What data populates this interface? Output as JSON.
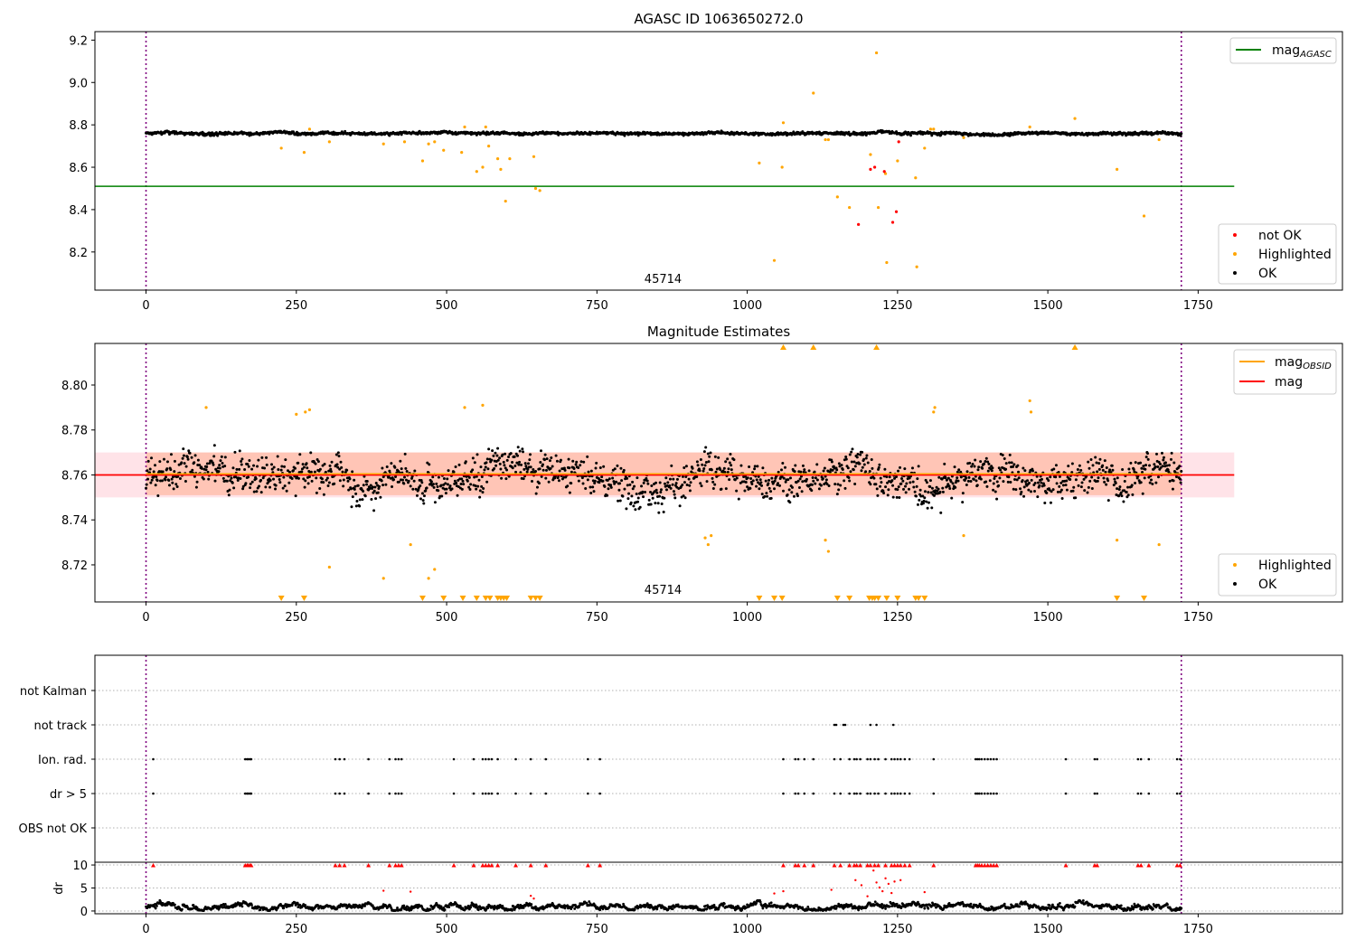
{
  "chart_data": [
    {
      "type": "scatter",
      "title": "AGASC ID 1063650272.0",
      "xlabel": "",
      "ylabel": "",
      "xlim": [
        -85,
        1990
      ],
      "ylim": [
        8.02,
        9.24
      ],
      "xticks": [
        0,
        250,
        500,
        750,
        1000,
        1250,
        1500,
        1750
      ],
      "yticks": [
        8.2,
        8.4,
        8.6,
        8.8,
        9.0,
        9.2
      ],
      "ytick_labels": [
        "8.2",
        "8.4",
        "8.6",
        "8.8",
        "9.0",
        "9.2"
      ],
      "obsid_label": "45714",
      "obsid_label_x": 860,
      "vlines": [
        0,
        1722
      ],
      "hlines": [
        {
          "name": "mag_AGASC",
          "y": 8.51,
          "x0": -85,
          "x1": 1810,
          "color": "#008000"
        }
      ],
      "legend_lines": [
        {
          "label_main": "mag",
          "label_sub": "AGASC",
          "color": "#008000"
        }
      ],
      "legend_points": [
        {
          "label": "not OK",
          "color": "#ff0000"
        },
        {
          "label": "Highlighted",
          "color": "#ffa500"
        },
        {
          "label": "OK",
          "color": "#000000"
        }
      ],
      "ok_band": {
        "x0": 0,
        "x1": 1722,
        "center": 8.76,
        "noise": 0.008
      },
      "highlighted": [
        [
          225,
          8.69
        ],
        [
          263,
          8.67
        ],
        [
          272,
          8.78
        ],
        [
          305,
          8.72
        ],
        [
          395,
          8.71
        ],
        [
          430,
          8.72
        ],
        [
          460,
          8.63
        ],
        [
          470,
          8.71
        ],
        [
          480,
          8.72
        ],
        [
          495,
          8.68
        ],
        [
          525,
          8.67
        ],
        [
          530,
          8.79
        ],
        [
          550,
          8.58
        ],
        [
          560,
          8.6
        ],
        [
          565,
          8.79
        ],
        [
          570,
          8.7
        ],
        [
          585,
          8.64
        ],
        [
          590,
          8.59
        ],
        [
          598,
          8.44
        ],
        [
          605,
          8.64
        ],
        [
          645,
          8.65
        ],
        [
          648,
          8.5
        ],
        [
          655,
          8.49
        ],
        [
          1020,
          8.62
        ],
        [
          1045,
          8.16
        ],
        [
          1058,
          8.6
        ],
        [
          1060,
          8.81
        ],
        [
          1110,
          8.95
        ],
        [
          1130,
          8.73
        ],
        [
          1135,
          8.73
        ],
        [
          1150,
          8.46
        ],
        [
          1170,
          8.41
        ],
        [
          1205,
          8.66
        ],
        [
          1215,
          9.14
        ],
        [
          1218,
          8.41
        ],
        [
          1230,
          8.57
        ],
        [
          1232,
          8.15
        ],
        [
          1250,
          8.63
        ],
        [
          1280,
          8.55
        ],
        [
          1282,
          8.13
        ],
        [
          1295,
          8.69
        ],
        [
          1305,
          8.78
        ],
        [
          1310,
          8.78
        ],
        [
          1360,
          8.74
        ],
        [
          1470,
          8.79
        ],
        [
          1545,
          8.83
        ],
        [
          1615,
          8.59
        ],
        [
          1660,
          8.37
        ],
        [
          1685,
          8.73
        ]
      ],
      "not_ok": [
        [
          1185,
          8.33
        ],
        [
          1205,
          8.59
        ],
        [
          1212,
          8.6
        ],
        [
          1228,
          8.58
        ],
        [
          1242,
          8.34
        ],
        [
          1248,
          8.39
        ],
        [
          1252,
          8.72
        ]
      ]
    },
    {
      "type": "scatter",
      "title": "Magnitude Estimates",
      "xlabel": "",
      "ylabel": "",
      "xlim": [
        -85,
        1990
      ],
      "ylim": [
        8.7035,
        8.8185
      ],
      "xticks": [
        0,
        250,
        500,
        750,
        1000,
        1250,
        1500,
        1750
      ],
      "yticks": [
        8.72,
        8.74,
        8.76,
        8.78,
        8.8
      ],
      "ytick_labels": [
        "8.72",
        "8.74",
        "8.76",
        "8.78",
        "8.80"
      ],
      "obsid_label": "45714",
      "obsid_label_x": 860,
      "vlines": [
        0,
        1722
      ],
      "mag_obsid": {
        "y": 8.7605,
        "x0": 0,
        "x1": 1722,
        "color": "#ffa500"
      },
      "mag": {
        "y": 8.76,
        "x0": -85,
        "x1": 1810,
        "color": "#ff0000"
      },
      "band_mag": {
        "y0": 8.75,
        "y1": 8.77,
        "x0": -85,
        "x1": 1810,
        "color": "#ffc0cb"
      },
      "band_obsid": {
        "y0": 8.751,
        "y1": 8.77,
        "x0": 0,
        "x1": 1722,
        "color": "#ffa07a"
      },
      "legend_lines": [
        {
          "label_main": "mag",
          "label_sub": "OBSID",
          "color": "#ffa500"
        },
        {
          "label_main": "mag",
          "label_sub": "",
          "color": "#ff0000"
        }
      ],
      "legend_points": [
        {
          "label": "Highlighted",
          "color": "#ffa500"
        },
        {
          "label": "OK",
          "color": "#000000"
        }
      ],
      "ok_band": {
        "x0": 0,
        "x1": 1722,
        "center": 8.76,
        "noise": 0.009
      },
      "highlighted": [
        [
          100,
          8.79
        ],
        [
          250,
          8.787
        ],
        [
          265,
          8.788
        ],
        [
          272,
          8.789
        ],
        [
          305,
          8.719
        ],
        [
          395,
          8.714
        ],
        [
          440,
          8.729
        ],
        [
          470,
          8.714
        ],
        [
          480,
          8.718
        ],
        [
          530,
          8.79
        ],
        [
          560,
          8.791
        ],
        [
          930,
          8.732
        ],
        [
          935,
          8.729
        ],
        [
          940,
          8.733
        ],
        [
          1130,
          8.731
        ],
        [
          1135,
          8.726
        ],
        [
          1310,
          8.788
        ],
        [
          1312,
          8.79
        ],
        [
          1360,
          8.733
        ],
        [
          1470,
          8.793
        ],
        [
          1472,
          8.788
        ],
        [
          1615,
          8.731
        ],
        [
          1685,
          8.729
        ]
      ],
      "up_markers": [
        1060,
        1110,
        1215,
        1545
      ],
      "down_markers": [
        225,
        263,
        460,
        495,
        527,
        550,
        565,
        572,
        585,
        590,
        595,
        600,
        640,
        648,
        655,
        1020,
        1045,
        1058,
        1150,
        1170,
        1203,
        1208,
        1212,
        1218,
        1232,
        1250,
        1280,
        1285,
        1295,
        1615,
        1660
      ]
    },
    {
      "type": "scatter",
      "title": "",
      "xlabel": "",
      "ylabel": "",
      "xlim": [
        -85,
        1990
      ],
      "vlines": [
        0,
        1722
      ],
      "categories": [
        "not Kalman",
        "not track",
        "Ion. rad.",
        "dr > 5",
        "OBS not OK"
      ],
      "flags": {
        "not track": [
          1145,
          1148,
          1160,
          1163,
          1205,
          1215,
          1243
        ],
        "Ion. rad.": [
          12,
          165,
          168,
          170,
          173,
          175,
          315,
          322,
          330,
          370,
          405,
          415,
          420,
          425,
          512,
          545,
          560,
          565,
          570,
          575,
          585,
          615,
          640,
          665,
          735,
          755,
          1060,
          1080,
          1085,
          1095,
          1110,
          1145,
          1155,
          1170,
          1178,
          1182,
          1188,
          1200,
          1205,
          1212,
          1218,
          1230,
          1240,
          1245,
          1250,
          1255,
          1262,
          1270,
          1310,
          1380,
          1383,
          1386,
          1390,
          1395,
          1400,
          1405,
          1410,
          1415,
          1530,
          1578,
          1582,
          1650,
          1655,
          1668,
          1715,
          1720
        ],
        "dr > 5": [
          12,
          165,
          168,
          170,
          173,
          175,
          315,
          322,
          330,
          370,
          405,
          415,
          420,
          425,
          512,
          545,
          560,
          565,
          570,
          575,
          585,
          615,
          640,
          665,
          735,
          755,
          1060,
          1080,
          1085,
          1095,
          1110,
          1145,
          1155,
          1170,
          1178,
          1182,
          1188,
          1200,
          1205,
          1212,
          1218,
          1230,
          1240,
          1245,
          1250,
          1255,
          1262,
          1270,
          1310,
          1380,
          1383,
          1386,
          1390,
          1395,
          1400,
          1405,
          1410,
          1415,
          1530,
          1578,
          1582,
          1650,
          1655,
          1668,
          1715,
          1720
        ]
      }
    },
    {
      "type": "scatter",
      "title": "",
      "xlabel": "",
      "ylabel": "dr",
      "xlim": [
        -85,
        1990
      ],
      "ylim": [
        -0.6,
        10.6
      ],
      "xticks": [
        0,
        250,
        500,
        750,
        1000,
        1250,
        1500,
        1750
      ],
      "yticks": [
        0,
        5,
        10
      ],
      "ytick_labels": [
        "0",
        "5",
        "10"
      ],
      "vlines": [
        0,
        1722
      ],
      "high_markers": [
        12,
        165,
        168,
        170,
        173,
        175,
        315,
        322,
        330,
        370,
        405,
        415,
        420,
        425,
        512,
        545,
        560,
        565,
        570,
        575,
        585,
        615,
        640,
        665,
        735,
        755,
        1060,
        1080,
        1085,
        1095,
        1110,
        1145,
        1155,
        1170,
        1178,
        1182,
        1188,
        1200,
        1205,
        1212,
        1218,
        1230,
        1240,
        1245,
        1250,
        1255,
        1262,
        1270,
        1310,
        1380,
        1383,
        1386,
        1390,
        1395,
        1400,
        1405,
        1410,
        1415,
        1530,
        1578,
        1582,
        1650,
        1655,
        1668,
        1715,
        1720
      ],
      "red_points": [
        [
          395,
          4.4
        ],
        [
          440,
          4.2
        ],
        [
          1045,
          3.8
        ],
        [
          1060,
          4.3
        ],
        [
          1140,
          4.6
        ],
        [
          1180,
          6.7
        ],
        [
          1190,
          5.6
        ],
        [
          1200,
          3.2
        ],
        [
          1210,
          8.8
        ],
        [
          1215,
          6.2
        ],
        [
          1220,
          5.1
        ],
        [
          1225,
          4.3
        ],
        [
          1230,
          7.1
        ],
        [
          1235,
          5.9
        ],
        [
          1240,
          3.9
        ],
        [
          1245,
          6.4
        ],
        [
          1255,
          6.7
        ],
        [
          1295,
          4.1
        ],
        [
          640,
          3.3
        ],
        [
          645,
          2.7
        ]
      ],
      "baseline": {
        "x0": 0,
        "x1": 1722,
        "level": 1.0
      }
    }
  ]
}
